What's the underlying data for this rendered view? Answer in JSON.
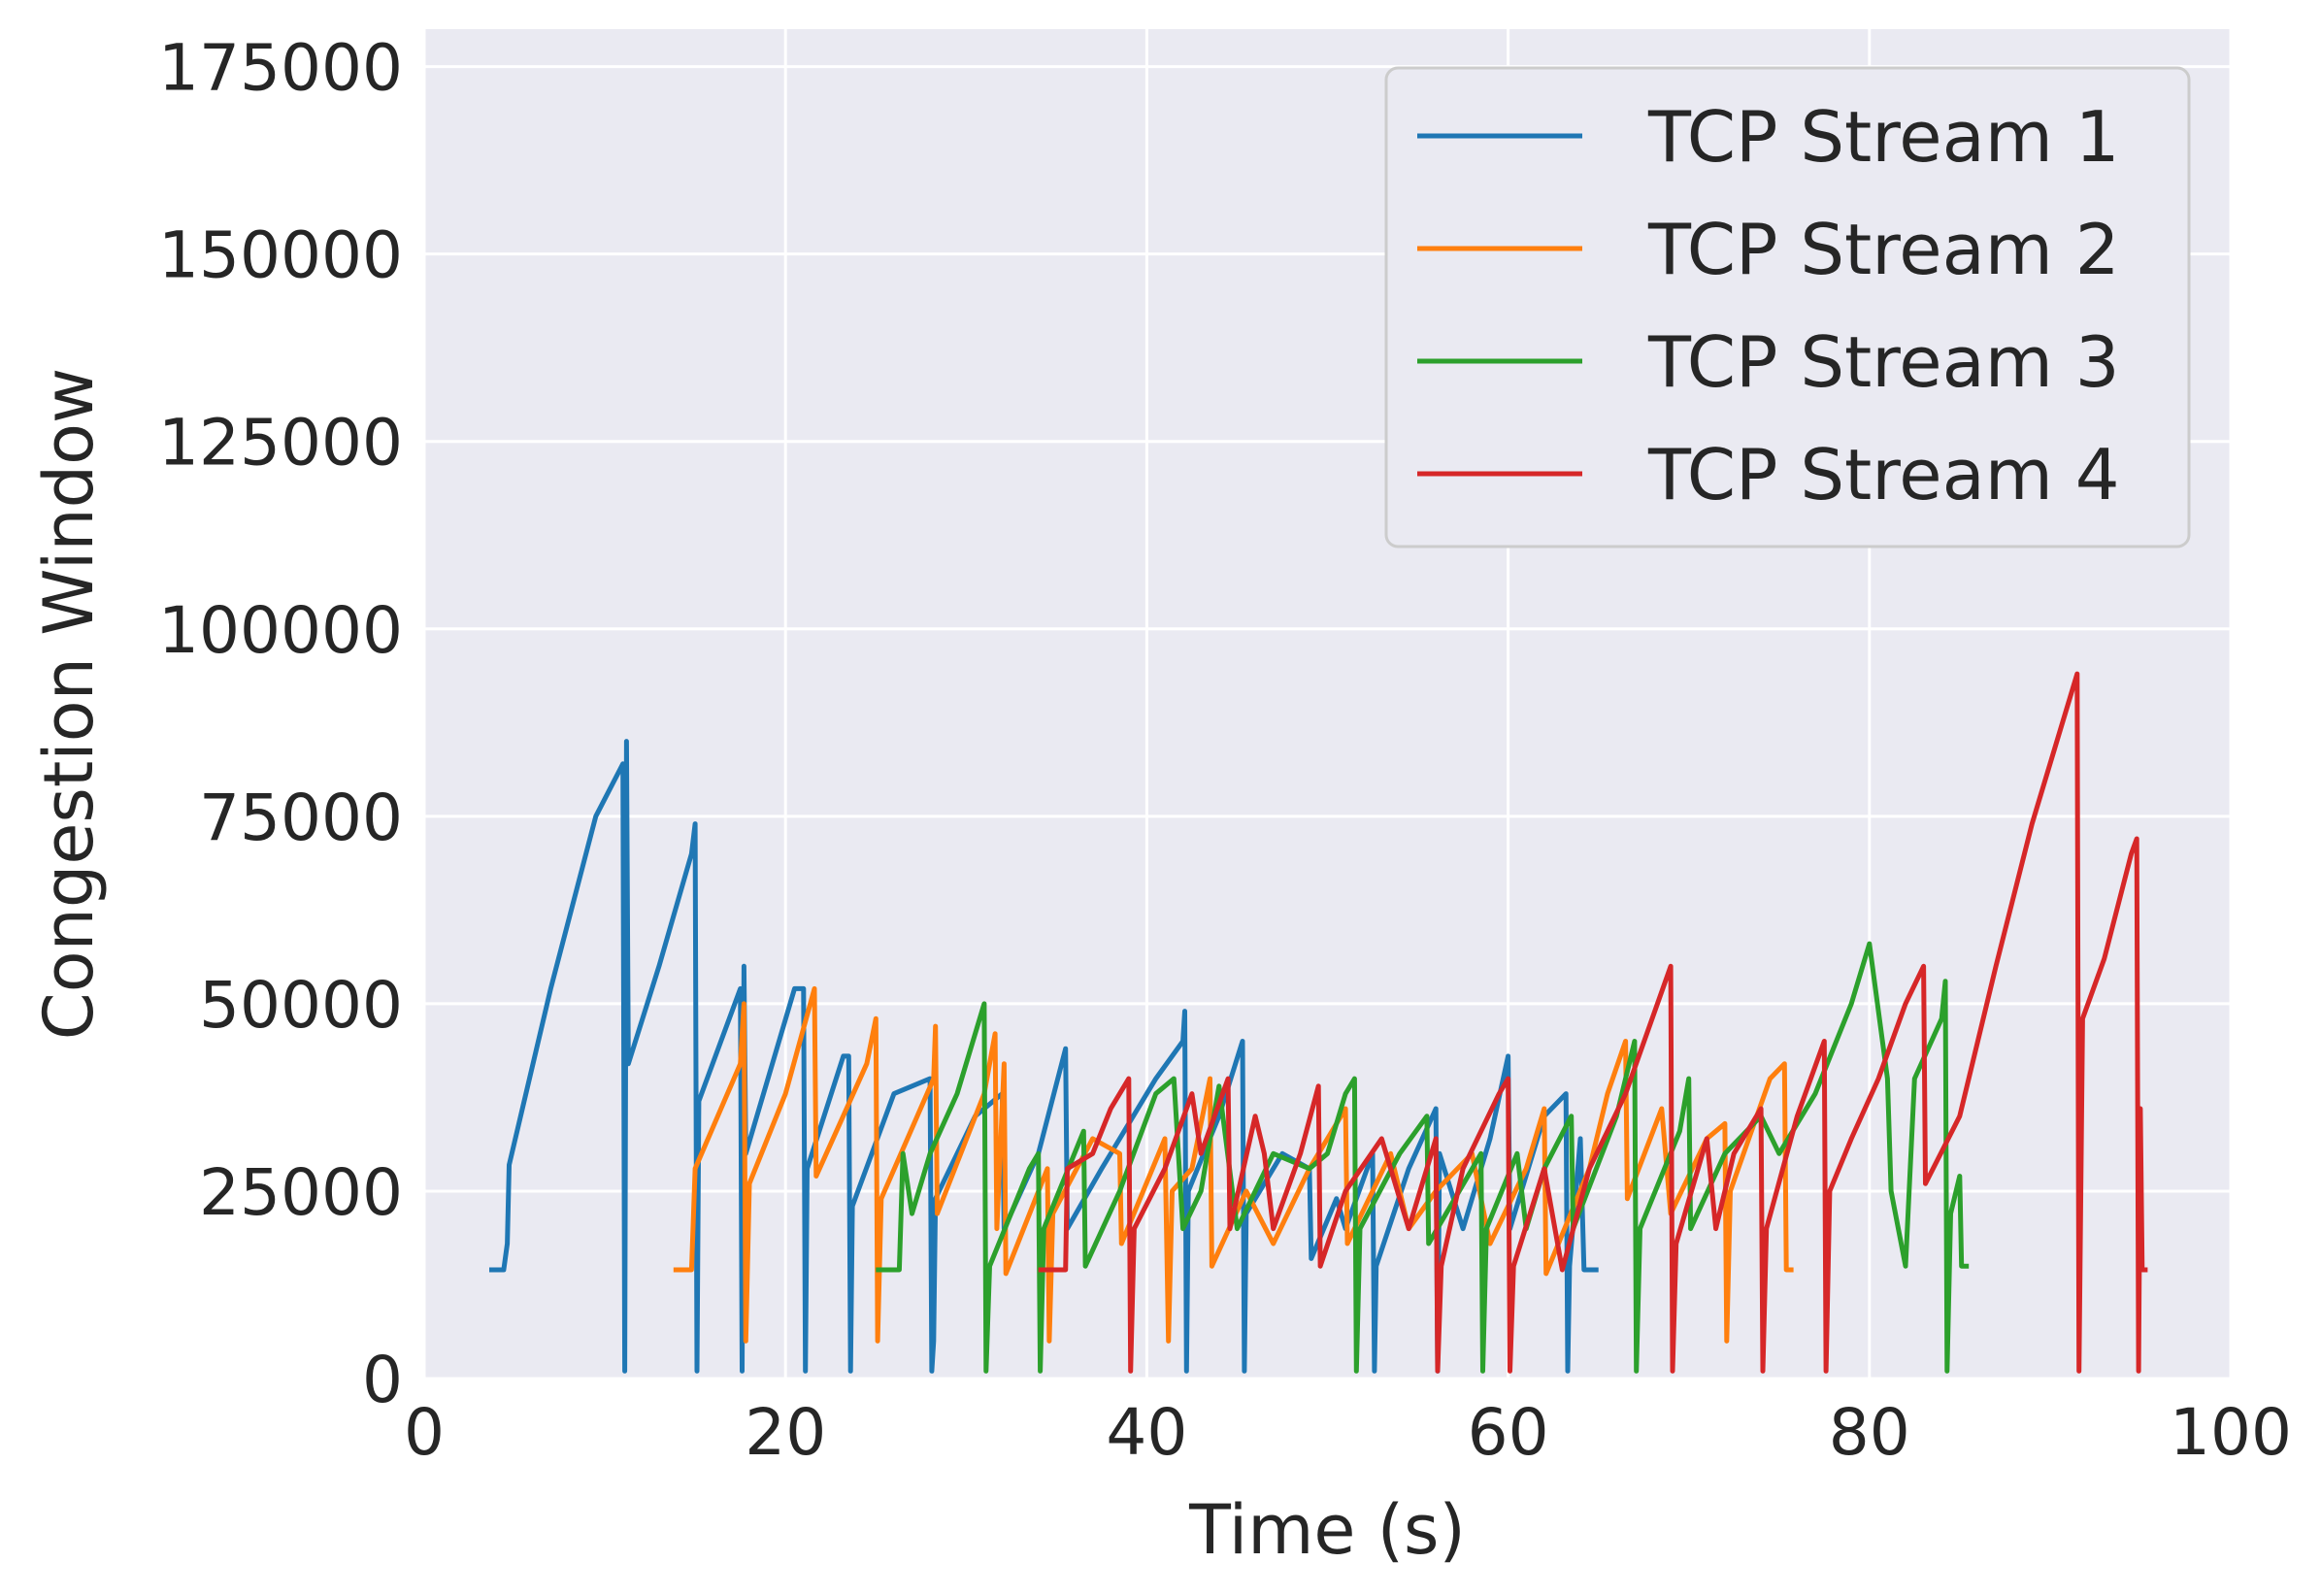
{
  "chart_data": {
    "type": "line",
    "title": "",
    "xlabel": "Time (s)",
    "ylabel": "Congestion Window",
    "xlim": [
      0,
      100
    ],
    "ylim": [
      0,
      180000
    ],
    "xticks": [
      0,
      20,
      40,
      60,
      80,
      100
    ],
    "yticks": [
      0,
      25000,
      50000,
      75000,
      100000,
      125000,
      150000,
      175000
    ],
    "grid": true,
    "background": "#eaeaf2",
    "legend_position": "top-right",
    "series": [
      {
        "name": "TCP Stream 1",
        "color": "#1f77b4",
        "points": [
          [
            3.6,
            14500
          ],
          [
            4.4,
            14500
          ],
          [
            4.6,
            18000
          ],
          [
            4.7,
            28500
          ],
          [
            7.0,
            52000
          ],
          [
            9.5,
            75000
          ],
          [
            11.0,
            82000
          ],
          [
            11.1,
            1000
          ],
          [
            11.2,
            85000
          ],
          [
            11.3,
            42000
          ],
          [
            13.0,
            55000
          ],
          [
            14.8,
            70000
          ],
          [
            15.0,
            74000
          ],
          [
            15.1,
            1000
          ],
          [
            15.2,
            37000
          ],
          [
            17.5,
            52000
          ],
          [
            17.6,
            1000
          ],
          [
            17.7,
            55000
          ],
          [
            17.8,
            30000
          ],
          [
            20.5,
            52000
          ],
          [
            21.0,
            52000
          ],
          [
            21.1,
            1000
          ],
          [
            21.2,
            28000
          ],
          [
            23.2,
            43000
          ],
          [
            23.5,
            43000
          ],
          [
            23.6,
            1000
          ],
          [
            23.7,
            23000
          ],
          [
            26.0,
            38000
          ],
          [
            28.0,
            40000
          ],
          [
            28.1,
            1000
          ],
          [
            28.2,
            5000
          ],
          [
            28.3,
            24000
          ],
          [
            30.5,
            35000
          ],
          [
            32.0,
            38000
          ],
          [
            32.1,
            20000
          ],
          [
            34.0,
            30000
          ],
          [
            35.5,
            44000
          ],
          [
            35.6,
            20000
          ],
          [
            37.5,
            28000
          ],
          [
            39.0,
            34000
          ],
          [
            40.5,
            40000
          ],
          [
            42.0,
            45000
          ],
          [
            42.1,
            49000
          ],
          [
            42.2,
            1000
          ],
          [
            42.3,
            25000
          ],
          [
            44.0,
            35000
          ],
          [
            45.3,
            45000
          ],
          [
            45.4,
            1000
          ],
          [
            45.5,
            22000
          ],
          [
            47.5,
            30000
          ],
          [
            49.0,
            28000
          ],
          [
            49.1,
            16000
          ],
          [
            50.5,
            24000
          ],
          [
            51.0,
            20000
          ],
          [
            52.5,
            30000
          ],
          [
            52.6,
            1000
          ],
          [
            52.7,
            15000
          ],
          [
            54.5,
            28000
          ],
          [
            56.0,
            36000
          ],
          [
            56.1,
            1000
          ],
          [
            56.2,
            30000
          ],
          [
            57.5,
            20000
          ],
          [
            59.0,
            32000
          ],
          [
            60.0,
            43000
          ],
          [
            60.1,
            20000
          ],
          [
            62.0,
            35000
          ],
          [
            63.2,
            38000
          ],
          [
            63.3,
            1000
          ],
          [
            63.4,
            15000
          ],
          [
            64.0,
            32000
          ],
          [
            64.2,
            14500
          ],
          [
            65.0,
            14500
          ]
        ]
      },
      {
        "name": "TCP Stream 2",
        "color": "#ff7f0e",
        "points": [
          [
            13.8,
            14500
          ],
          [
            14.8,
            14500
          ],
          [
            15.0,
            28000
          ],
          [
            17.5,
            42000
          ],
          [
            17.7,
            50000
          ],
          [
            17.8,
            5000
          ],
          [
            18.0,
            26000
          ],
          [
            20.0,
            38000
          ],
          [
            21.6,
            52000
          ],
          [
            21.7,
            27000
          ],
          [
            24.5,
            42000
          ],
          [
            25.0,
            48000
          ],
          [
            25.1,
            5000
          ],
          [
            25.3,
            24000
          ],
          [
            28.2,
            40000
          ],
          [
            28.3,
            47000
          ],
          [
            28.4,
            22000
          ],
          [
            31.0,
            38000
          ],
          [
            31.6,
            46000
          ],
          [
            31.7,
            20000
          ],
          [
            32.1,
            42000
          ],
          [
            32.2,
            14000
          ],
          [
            34.5,
            28000
          ],
          [
            34.6,
            5000
          ],
          [
            34.8,
            22000
          ],
          [
            37.0,
            32000
          ],
          [
            38.5,
            30000
          ],
          [
            38.6,
            18000
          ],
          [
            41.0,
            32000
          ],
          [
            41.2,
            5000
          ],
          [
            41.4,
            25000
          ],
          [
            42.5,
            28000
          ],
          [
            43.5,
            40000
          ],
          [
            43.6,
            15000
          ],
          [
            45.5,
            25000
          ],
          [
            47.0,
            18000
          ],
          [
            49.0,
            28000
          ],
          [
            51.0,
            36000
          ],
          [
            51.1,
            18000
          ],
          [
            53.5,
            30000
          ],
          [
            54.5,
            20000
          ],
          [
            56.0,
            25000
          ],
          [
            58.0,
            30000
          ],
          [
            59.0,
            18000
          ],
          [
            61.0,
            28000
          ],
          [
            62.0,
            36000
          ],
          [
            62.1,
            14000
          ],
          [
            64.5,
            28000
          ],
          [
            65.5,
            38000
          ],
          [
            66.5,
            45000
          ],
          [
            66.6,
            24000
          ],
          [
            68.5,
            36000
          ],
          [
            69.0,
            22000
          ],
          [
            71.0,
            32000
          ],
          [
            72.0,
            34000
          ],
          [
            72.1,
            5000
          ],
          [
            72.3,
            25000
          ],
          [
            74.5,
            40000
          ],
          [
            75.3,
            42000
          ],
          [
            75.4,
            14500
          ],
          [
            75.8,
            14500
          ]
        ]
      },
      {
        "name": "TCP Stream 3",
        "color": "#2ca02c",
        "points": [
          [
            25.0,
            14500
          ],
          [
            26.3,
            14500
          ],
          [
            26.5,
            30000
          ],
          [
            27.0,
            22000
          ],
          [
            28.0,
            30000
          ],
          [
            29.5,
            38000
          ],
          [
            31.0,
            50000
          ],
          [
            31.1,
            1000
          ],
          [
            31.3,
            15000
          ],
          [
            33.5,
            28000
          ],
          [
            34.0,
            30000
          ],
          [
            34.1,
            1000
          ],
          [
            34.3,
            20000
          ],
          [
            36.5,
            33000
          ],
          [
            36.6,
            15000
          ],
          [
            38.5,
            25000
          ],
          [
            40.5,
            38000
          ],
          [
            41.5,
            40000
          ],
          [
            42.0,
            20000
          ],
          [
            43.0,
            25000
          ],
          [
            44.0,
            39000
          ],
          [
            45.0,
            20000
          ],
          [
            47.0,
            30000
          ],
          [
            49.0,
            28000
          ],
          [
            50.0,
            30000
          ],
          [
            51.0,
            38000
          ],
          [
            51.5,
            40000
          ],
          [
            51.6,
            1000
          ],
          [
            51.8,
            20000
          ],
          [
            54.0,
            30000
          ],
          [
            55.5,
            35000
          ],
          [
            55.6,
            18000
          ],
          [
            58.5,
            30000
          ],
          [
            58.6,
            1000
          ],
          [
            58.8,
            20000
          ],
          [
            60.5,
            30000
          ],
          [
            61.0,
            20000
          ],
          [
            62.0,
            28000
          ],
          [
            63.5,
            35000
          ],
          [
            63.6,
            20000
          ],
          [
            66.0,
            35000
          ],
          [
            67.0,
            45000
          ],
          [
            67.1,
            1000
          ],
          [
            67.3,
            20000
          ],
          [
            69.5,
            33000
          ],
          [
            70.0,
            40000
          ],
          [
            70.1,
            20000
          ],
          [
            72.0,
            30000
          ],
          [
            74.0,
            35000
          ],
          [
            75.0,
            30000
          ],
          [
            77.0,
            38000
          ],
          [
            79.0,
            50000
          ],
          [
            80.0,
            58000
          ],
          [
            81.0,
            40000
          ],
          [
            81.2,
            25000
          ],
          [
            82.0,
            15000
          ],
          [
            82.5,
            40000
          ],
          [
            84.0,
            48000
          ],
          [
            84.2,
            53000
          ],
          [
            84.3,
            1000
          ],
          [
            84.5,
            22000
          ],
          [
            85.0,
            27000
          ],
          [
            85.1,
            15000
          ],
          [
            85.5,
            15000
          ]
        ]
      },
      {
        "name": "TCP Stream 4",
        "color": "#d62728",
        "points": [
          [
            34.0,
            14500
          ],
          [
            35.5,
            14500
          ],
          [
            35.6,
            28000
          ],
          [
            37.0,
            30000
          ],
          [
            38.0,
            36000
          ],
          [
            39.0,
            40000
          ],
          [
            39.1,
            1000
          ],
          [
            39.3,
            20000
          ],
          [
            41.0,
            28000
          ],
          [
            42.5,
            38000
          ],
          [
            43.0,
            30000
          ],
          [
            44.5,
            40000
          ],
          [
            44.6,
            20000
          ],
          [
            46.0,
            35000
          ],
          [
            46.5,
            30000
          ],
          [
            47.0,
            20000
          ],
          [
            48.5,
            30000
          ],
          [
            49.5,
            39000
          ],
          [
            49.6,
            15000
          ],
          [
            51.0,
            25000
          ],
          [
            53.0,
            32000
          ],
          [
            54.5,
            20000
          ],
          [
            56.0,
            32000
          ],
          [
            56.1,
            1000
          ],
          [
            56.3,
            15000
          ],
          [
            57.5,
            28000
          ],
          [
            59.5,
            38000
          ],
          [
            60.0,
            40000
          ],
          [
            60.1,
            1000
          ],
          [
            60.3,
            15000
          ],
          [
            62.0,
            28000
          ],
          [
            63.0,
            14500
          ],
          [
            64.5,
            28000
          ],
          [
            66.5,
            38000
          ],
          [
            69.0,
            55000
          ],
          [
            69.1,
            1000
          ],
          [
            69.3,
            18000
          ],
          [
            71.0,
            32000
          ],
          [
            71.5,
            20000
          ],
          [
            72.5,
            30000
          ],
          [
            74.0,
            36000
          ],
          [
            74.1,
            1000
          ],
          [
            74.3,
            20000
          ],
          [
            76.0,
            35000
          ],
          [
            77.5,
            45000
          ],
          [
            77.6,
            1000
          ],
          [
            77.8,
            25000
          ],
          [
            79.0,
            32000
          ],
          [
            80.5,
            40000
          ],
          [
            82.0,
            50000
          ],
          [
            83.0,
            55000
          ],
          [
            83.1,
            26000
          ],
          [
            85.0,
            35000
          ],
          [
            87.0,
            55000
          ],
          [
            89.0,
            74000
          ],
          [
            91.5,
            94000
          ],
          [
            91.6,
            1000
          ],
          [
            91.8,
            48000
          ],
          [
            93.0,
            56000
          ],
          [
            94.5,
            70000
          ],
          [
            94.8,
            72000
          ],
          [
            94.9,
            1000
          ],
          [
            95.0,
            36000
          ],
          [
            95.1,
            14500
          ],
          [
            95.4,
            14500
          ]
        ]
      }
    ]
  }
}
